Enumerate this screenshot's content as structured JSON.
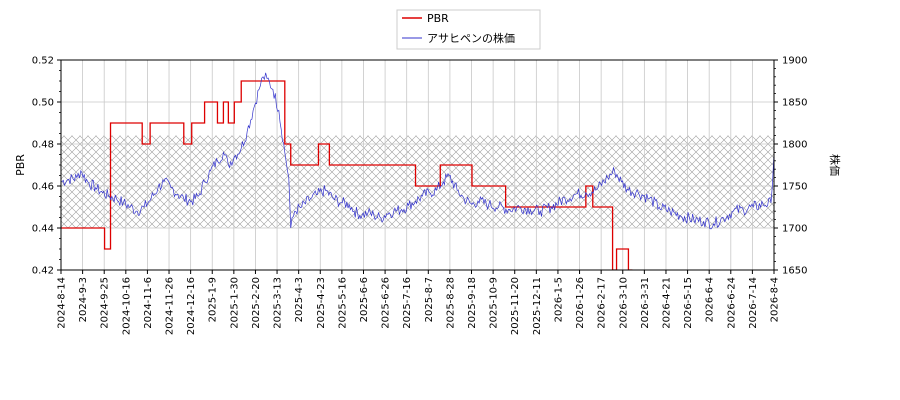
{
  "chart_data": {
    "type": "line",
    "title": "",
    "xlabel": "",
    "ylabel": "PBR",
    "y2label": "株価",
    "ylim": [
      0.42,
      0.52
    ],
    "y2lim": [
      1650,
      1900
    ],
    "yticks": [
      "0.42",
      "0.44",
      "0.46",
      "0.48",
      "0.50",
      "0.52"
    ],
    "y2ticks": [
      "1650",
      "1700",
      "1750",
      "1800",
      "1850",
      "1900"
    ],
    "xlim": [
      "2024-08-14",
      "2026-08-04"
    ],
    "xticks": [
      "2024-8-14",
      "2024-9-3",
      "2024-9-25",
      "2024-10-16",
      "2024-11-6",
      "2024-11-26",
      "2024-12-16",
      "2025-1-9",
      "2025-1-30",
      "2025-2-20",
      "2025-3-13",
      "2025-4-3",
      "2025-4-23",
      "2025-5-16",
      "2025-6-6",
      "2025-6-26",
      "2025-7-16",
      "2025-8-7",
      "2025-8-28",
      "2025-9-18",
      "2025-10-9",
      "2025-11-20",
      "2025-12-11",
      "2026-1-5",
      "2026-1-26",
      "2026-2-17",
      "2026-3-10",
      "2026-3-31",
      "2026-4-21",
      "2026-5-15",
      "2026-6-4",
      "2026-6-24",
      "2026-7-14",
      "2026-8-4"
    ],
    "hatch_band": [
      1700,
      1810
    ],
    "grid": true,
    "legend_position": "top-center",
    "series": [
      {
        "name": "PBR",
        "axis": "left",
        "color": "#dd0000",
        "step": true,
        "points": [
          [
            "2024-08-14",
            0.44
          ],
          [
            "2024-09-27",
            0.44
          ],
          [
            "2024-09-27",
            0.43
          ],
          [
            "2024-10-03",
            0.43
          ],
          [
            "2024-10-03",
            0.49
          ],
          [
            "2024-11-04",
            0.49
          ],
          [
            "2024-11-04",
            0.48
          ],
          [
            "2024-11-12",
            0.48
          ],
          [
            "2024-11-12",
            0.49
          ],
          [
            "2024-12-16",
            0.49
          ],
          [
            "2024-12-16",
            0.48
          ],
          [
            "2024-12-24",
            0.48
          ],
          [
            "2024-12-24",
            0.49
          ],
          [
            "2025-01-06",
            0.49
          ],
          [
            "2025-01-06",
            0.5
          ],
          [
            "2025-01-19",
            0.5
          ],
          [
            "2025-01-19",
            0.49
          ],
          [
            "2025-01-25",
            0.49
          ],
          [
            "2025-01-25",
            0.5
          ],
          [
            "2025-01-30",
            0.5
          ],
          [
            "2025-01-30",
            0.49
          ],
          [
            "2025-02-05",
            0.49
          ],
          [
            "2025-02-05",
            0.5
          ],
          [
            "2025-02-12",
            0.5
          ],
          [
            "2025-02-12",
            0.51
          ],
          [
            "2025-03-28",
            0.51
          ],
          [
            "2025-03-28",
            0.48
          ],
          [
            "2025-04-03",
            0.48
          ],
          [
            "2025-04-03",
            0.47
          ],
          [
            "2025-05-01",
            0.47
          ],
          [
            "2025-05-01",
            0.48
          ],
          [
            "2025-05-12",
            0.48
          ],
          [
            "2025-05-12",
            0.47
          ],
          [
            "2025-08-07",
            0.47
          ],
          [
            "2025-08-07",
            0.46
          ],
          [
            "2025-09-01",
            0.46
          ],
          [
            "2025-09-01",
            0.47
          ],
          [
            "2025-10-03",
            0.47
          ],
          [
            "2025-10-03",
            0.46
          ],
          [
            "2025-11-06",
            0.46
          ],
          [
            "2025-11-06",
            0.45
          ],
          [
            "2026-01-26",
            0.45
          ],
          [
            "2026-01-26",
            0.46
          ],
          [
            "2026-02-02",
            0.46
          ],
          [
            "2026-02-02",
            0.45
          ],
          [
            "2026-02-22",
            0.45
          ],
          [
            "2026-02-22",
            0.42
          ],
          [
            "2026-02-26",
            0.42
          ],
          [
            "2026-02-26",
            0.43
          ],
          [
            "2026-03-10",
            0.43
          ],
          [
            "2026-03-10",
            0.42
          ],
          [
            "2026-03-14",
            0.42
          ]
        ]
      },
      {
        "name": "アサヒペンの株価",
        "axis": "right",
        "color": "#3333cc",
        "points": [
          [
            "2024-08-14",
            1755
          ],
          [
            "2024-08-22",
            1758
          ],
          [
            "2024-08-30",
            1760
          ],
          [
            "2024-09-03",
            1768
          ],
          [
            "2024-09-10",
            1755
          ],
          [
            "2024-09-18",
            1748
          ],
          [
            "2024-09-25",
            1742
          ],
          [
            "2024-10-02",
            1738
          ],
          [
            "2024-10-09",
            1735
          ],
          [
            "2024-10-16",
            1730
          ],
          [
            "2024-10-23",
            1725
          ],
          [
            "2024-10-30",
            1720
          ],
          [
            "2024-11-06",
            1725
          ],
          [
            "2024-11-13",
            1735
          ],
          [
            "2024-11-20",
            1748
          ],
          [
            "2024-11-26",
            1755
          ],
          [
            "2024-12-03",
            1748
          ],
          [
            "2024-12-10",
            1740
          ],
          [
            "2024-12-16",
            1735
          ],
          [
            "2024-12-24",
            1732
          ],
          [
            "2024-12-31",
            1738
          ],
          [
            "2025-01-06",
            1755
          ],
          [
            "2025-01-12",
            1768
          ],
          [
            "2025-01-19",
            1780
          ],
          [
            "2025-01-25",
            1790
          ],
          [
            "2025-01-30",
            1775
          ],
          [
            "2025-02-05",
            1785
          ],
          [
            "2025-02-12",
            1795
          ],
          [
            "2025-02-18",
            1815
          ],
          [
            "2025-02-24",
            1840
          ],
          [
            "2025-03-02",
            1865
          ],
          [
            "2025-03-06",
            1880
          ],
          [
            "2025-03-10",
            1878
          ],
          [
            "2025-03-16",
            1865
          ],
          [
            "2025-03-22",
            1840
          ],
          [
            "2025-03-28",
            1790
          ],
          [
            "2025-04-01",
            1760
          ],
          [
            "2025-04-03",
            1700
          ],
          [
            "2025-04-07",
            1720
          ],
          [
            "2025-04-14",
            1725
          ],
          [
            "2025-04-23",
            1735
          ],
          [
            "2025-04-30",
            1740
          ],
          [
            "2025-05-08",
            1745
          ],
          [
            "2025-05-16",
            1735
          ],
          [
            "2025-05-25",
            1730
          ],
          [
            "2025-06-01",
            1728
          ],
          [
            "2025-06-06",
            1720
          ],
          [
            "2025-06-14",
            1715
          ],
          [
            "2025-06-20",
            1718
          ],
          [
            "2025-06-26",
            1715
          ],
          [
            "2025-07-03",
            1712
          ],
          [
            "2025-07-09",
            1717
          ],
          [
            "2025-07-16",
            1720
          ],
          [
            "2025-07-24",
            1722
          ],
          [
            "2025-07-31",
            1727
          ],
          [
            "2025-08-07",
            1732
          ],
          [
            "2025-08-14",
            1738
          ],
          [
            "2025-08-21",
            1742
          ],
          [
            "2025-08-28",
            1745
          ],
          [
            "2025-09-04",
            1755
          ],
          [
            "2025-09-10",
            1762
          ],
          [
            "2025-09-18",
            1745
          ],
          [
            "2025-09-25",
            1735
          ],
          [
            "2025-10-03",
            1728
          ],
          [
            "2025-10-09",
            1732
          ],
          [
            "2025-10-20",
            1728
          ],
          [
            "2025-10-30",
            1725
          ],
          [
            "2025-11-10",
            1722
          ],
          [
            "2025-11-20",
            1725
          ],
          [
            "2025-12-01",
            1722
          ],
          [
            "2025-12-11",
            1720
          ],
          [
            "2025-12-22",
            1725
          ],
          [
            "2026-01-05",
            1735
          ],
          [
            "2026-01-15",
            1740
          ],
          [
            "2026-01-26",
            1742
          ],
          [
            "2026-02-05",
            1745
          ],
          [
            "2026-02-17",
            1760
          ],
          [
            "2026-02-24",
            1768
          ],
          [
            "2026-03-03",
            1755
          ],
          [
            "2026-03-10",
            1745
          ],
          [
            "2026-03-20",
            1742
          ],
          [
            "2026-03-31",
            1735
          ],
          [
            "2026-04-10",
            1725
          ],
          [
            "2026-04-21",
            1720
          ],
          [
            "2026-05-01",
            1715
          ],
          [
            "2026-05-15",
            1710
          ],
          [
            "2026-05-25",
            1708
          ],
          [
            "2026-06-04",
            1705
          ],
          [
            "2026-06-14",
            1712
          ],
          [
            "2026-06-24",
            1720
          ],
          [
            "2026-07-04",
            1722
          ],
          [
            "2026-07-14",
            1725
          ],
          [
            "2026-07-24",
            1728
          ],
          [
            "2026-08-01",
            1730
          ],
          [
            "2026-08-04",
            1790
          ]
        ]
      }
    ]
  }
}
